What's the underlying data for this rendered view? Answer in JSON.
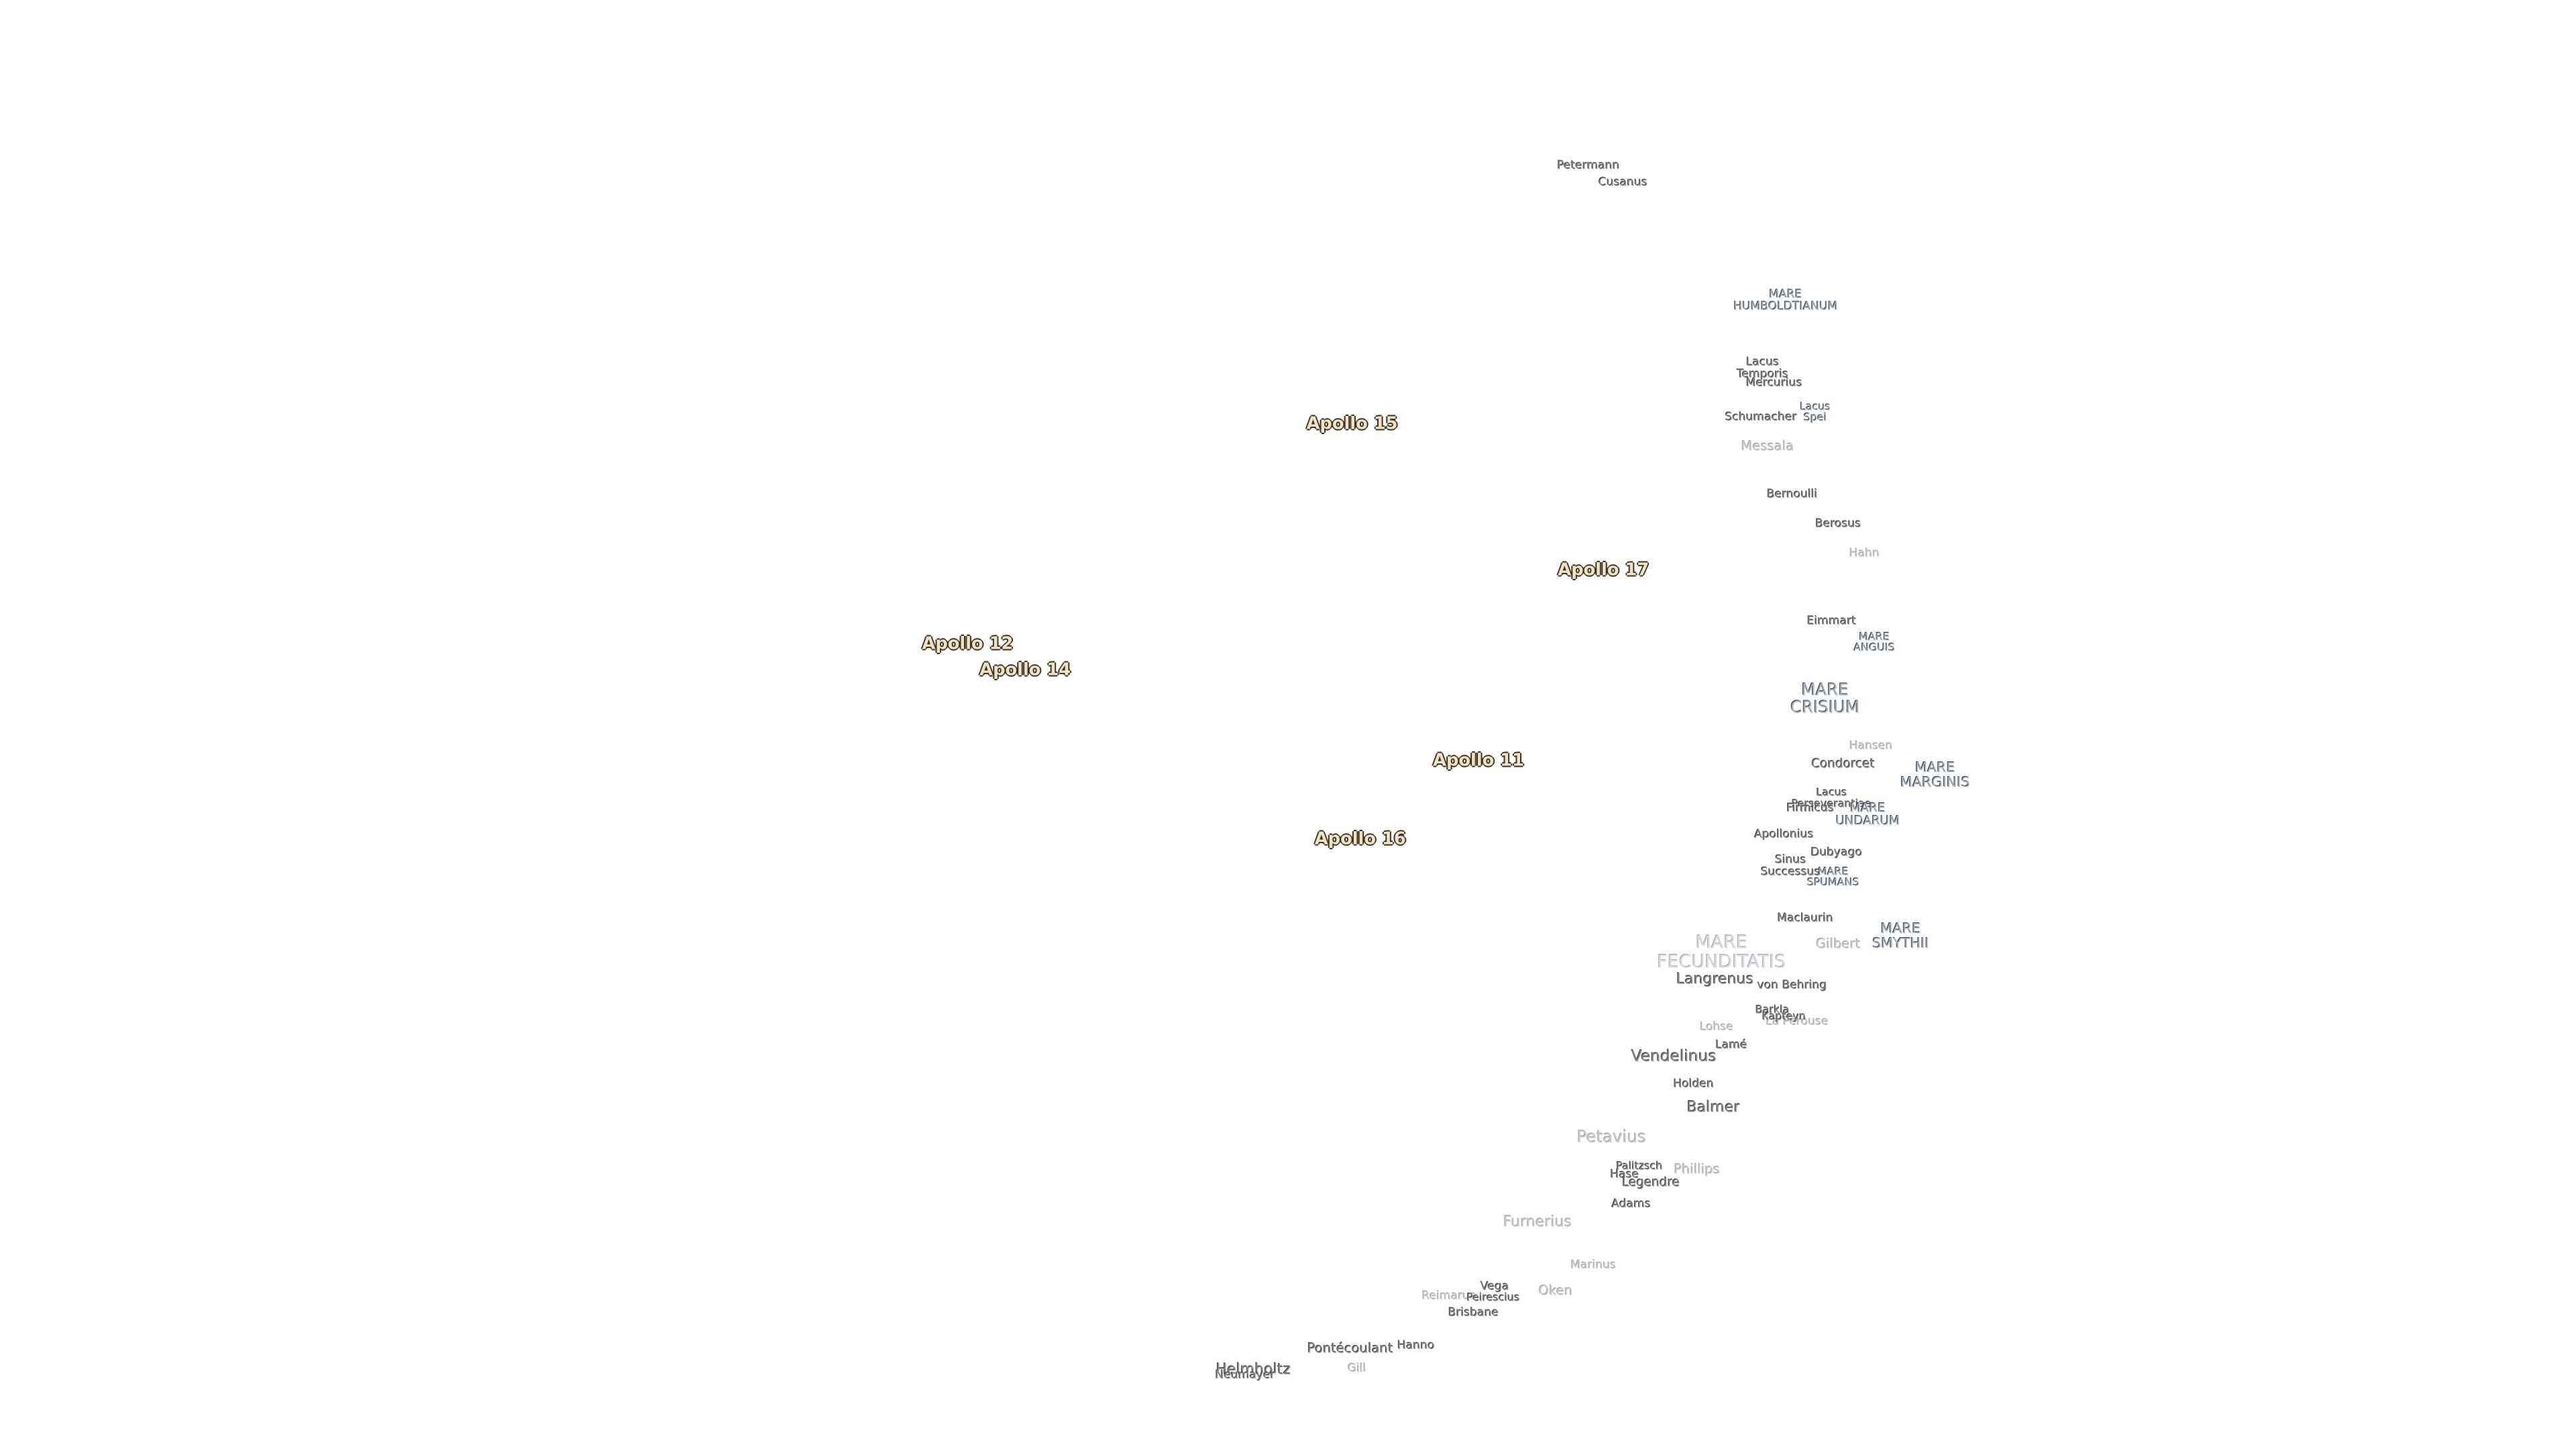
{
  "apollo_sites": [
    "Apollo 15",
    "Apollo 17",
    "Apollo 12",
    "Apollo 14",
    "Apollo 11",
    "Apollo 16"
  ],
  "features": [
    [
      "Petermann"
    ],
    [
      "Cusanus"
    ],
    [
      "MARE",
      "HUMBOLDTIANUM"
    ],
    [
      "Lacus",
      "Temporis"
    ],
    [
      "Mercurius"
    ],
    [
      "Lacus",
      "Spei"
    ],
    [
      "Schumacher"
    ],
    [
      "Messala"
    ],
    [
      "Bernoulli"
    ],
    [
      "Berosus"
    ],
    [
      "Hahn"
    ],
    [
      "Eimmart"
    ],
    [
      "MARE",
      "ANGUIS"
    ],
    [
      "MARE",
      "CRISIUM"
    ],
    [
      "Hansen"
    ],
    [
      "Condorcet"
    ],
    [
      "MARE",
      "MARGINIS"
    ],
    [
      "Lacus",
      "Perseverantiae"
    ],
    [
      "Firmicus"
    ],
    [
      "MARE",
      "UNDARUM"
    ],
    [
      "Apollonius"
    ],
    [
      "Dubyago"
    ],
    [
      "Sinus",
      "Successus"
    ],
    [
      "MARE",
      "SPUMANS"
    ],
    [
      "Maclaurin"
    ],
    [
      "MARE",
      "FECUNDITATIS"
    ],
    [
      "Gilbert"
    ],
    [
      "MARE",
      "SMYTHII"
    ],
    [
      "Langrenus"
    ],
    [
      "von Behring"
    ],
    [
      "Lohse"
    ],
    [
      "Barkla"
    ],
    [
      "Kapteyn"
    ],
    [
      "La Pérouse"
    ],
    [
      "Lamé"
    ],
    [
      "Vendelinus"
    ],
    [
      "Holden"
    ],
    [
      "Balmer"
    ],
    [
      "Petavius"
    ],
    [
      "Palitzsch"
    ],
    [
      "Hase"
    ],
    [
      "Legendre"
    ],
    [
      "Phillips"
    ],
    [
      "Adams"
    ],
    [
      "Furnerius"
    ],
    [
      "Marinus"
    ],
    [
      "Vega"
    ],
    [
      "Reimarus"
    ],
    [
      "Peirescius"
    ],
    [
      "Oken"
    ],
    [
      "Brisbane"
    ],
    [
      "Pontécoulant"
    ],
    [
      "Hanno"
    ],
    [
      "Helmholtz"
    ],
    [
      "Neumayer"
    ],
    [
      "Gill"
    ]
  ]
}
